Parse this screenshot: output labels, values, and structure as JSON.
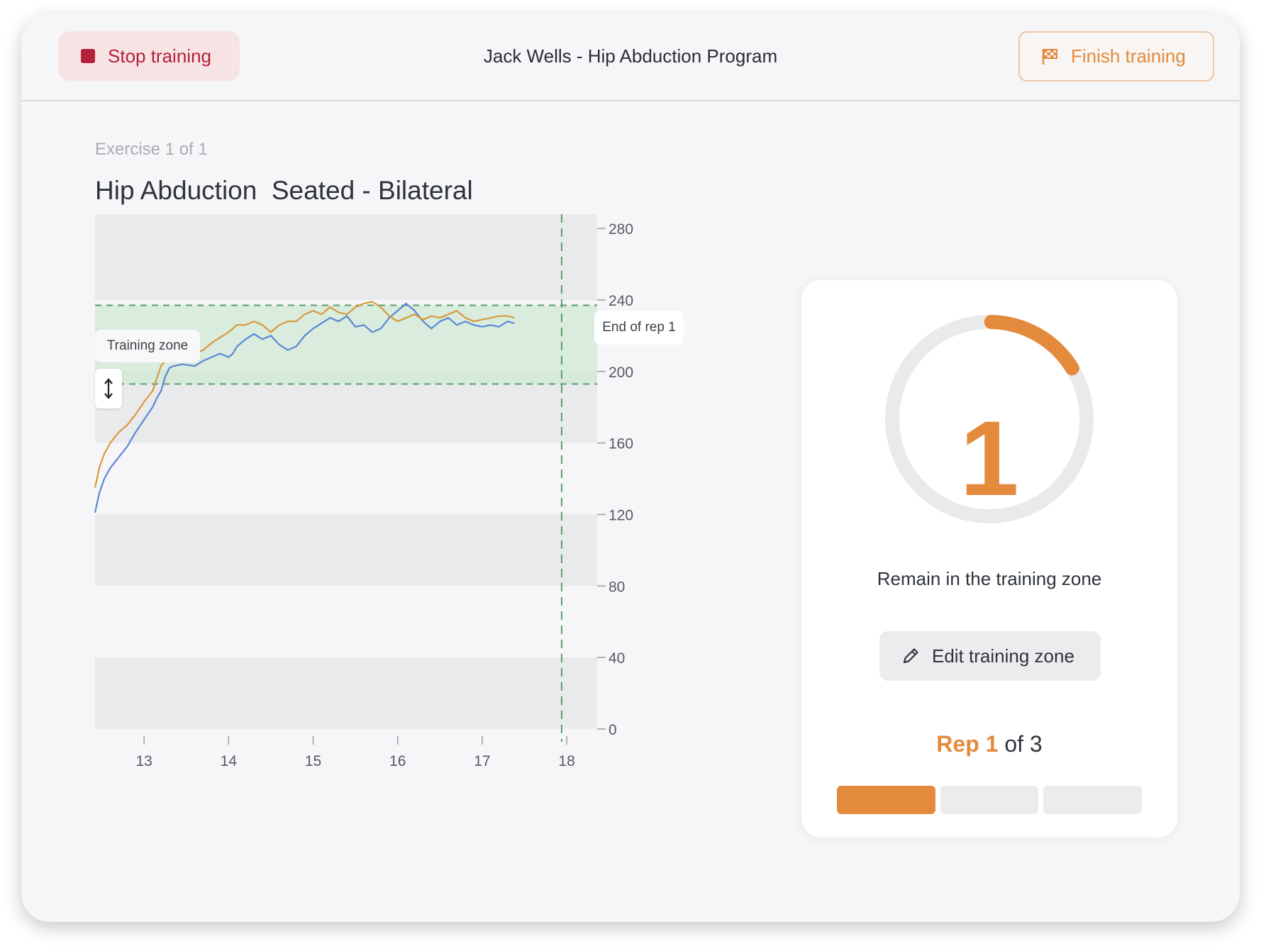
{
  "header": {
    "stop_label": "Stop training",
    "title": "Jack Wells - Hip Abduction Program",
    "finish_label": "Finish training"
  },
  "exercise": {
    "count_label": "Exercise 1 of 1",
    "name": "Hip Abduction  Seated - Bilateral"
  },
  "chart_labels": {
    "training_zone": "Training zone",
    "end_of_rep": "End of rep 1"
  },
  "side": {
    "rep_number": "1",
    "instruction": "Remain in the training zone",
    "edit_label": "Edit training zone",
    "rep_word": "Rep",
    "rep_current": "1",
    "rep_of": "of",
    "rep_total": "3"
  },
  "colors": {
    "accent": "#e38a3d",
    "stop": "#b3213a",
    "zone_fill": "#cfe8d4",
    "zone_line": "#5a9f6a",
    "series_blue": "#5b86d6",
    "series_orange": "#d89a3c"
  },
  "chart_data": {
    "type": "line",
    "x_ticks": [
      13,
      14,
      15,
      16,
      17,
      18
    ],
    "y_ticks": [
      0,
      40,
      80,
      120,
      160,
      200,
      240,
      280
    ],
    "xlim": [
      12.42,
      18.36
    ],
    "ylim": [
      -4,
      288
    ],
    "training_zone": [
      193,
      237
    ],
    "rep_end_x": 17.94,
    "series": [
      {
        "color": "blue",
        "x": [
          12.42,
          12.47,
          12.53,
          12.6,
          12.7,
          12.8,
          12.9,
          13.0,
          13.1,
          13.15,
          13.2,
          13.25,
          13.3,
          13.35,
          13.45,
          13.6,
          13.7,
          13.8,
          13.9,
          14.0,
          14.05,
          14.1,
          14.2,
          14.3,
          14.4,
          14.5,
          14.6,
          14.7,
          14.8,
          14.9,
          15.0,
          15.1,
          15.2,
          15.3,
          15.4,
          15.5,
          15.6,
          15.7,
          15.8,
          15.9,
          16.0,
          16.1,
          16.2,
          16.3,
          16.4,
          16.5,
          16.6,
          16.7,
          16.8,
          16.9,
          17.0,
          17.1,
          17.2,
          17.3,
          17.38
        ],
        "y": [
          121,
          132,
          140,
          146,
          152,
          158,
          166,
          173,
          180,
          185,
          189,
          197,
          202,
          203,
          204,
          203,
          206,
          208,
          210,
          208,
          210,
          214,
          218,
          221,
          218,
          220,
          215,
          212,
          214,
          220,
          224,
          227,
          230,
          228,
          231,
          225,
          226,
          222,
          224,
          230,
          234,
          238,
          234,
          228,
          224,
          228,
          230,
          226,
          228,
          226,
          225,
          226,
          225,
          228,
          227
        ]
      },
      {
        "color": "orange",
        "x": [
          12.42,
          12.47,
          12.53,
          12.6,
          12.7,
          12.8,
          12.9,
          13.0,
          13.1,
          13.15,
          13.2,
          13.25,
          13.3,
          13.4,
          13.5,
          13.6,
          13.7,
          13.8,
          13.9,
          14.0,
          14.1,
          14.2,
          14.3,
          14.4,
          14.5,
          14.6,
          14.7,
          14.8,
          14.9,
          15.0,
          15.1,
          15.2,
          15.3,
          15.4,
          15.5,
          15.6,
          15.7,
          15.8,
          15.9,
          16.0,
          16.1,
          16.2,
          16.3,
          16.4,
          16.5,
          16.6,
          16.7,
          16.8,
          16.9,
          17.0,
          17.1,
          17.2,
          17.3,
          17.38
        ],
        "y": [
          135,
          146,
          154,
          160,
          166,
          170,
          176,
          183,
          189,
          196,
          203,
          206,
          207,
          208,
          207,
          210,
          212,
          216,
          219,
          222,
          226,
          226,
          228,
          226,
          222,
          226,
          228,
          228,
          232,
          234,
          232,
          236,
          233,
          232,
          236,
          238,
          239,
          236,
          231,
          228,
          230,
          232,
          229,
          231,
          230,
          232,
          234,
          230,
          228,
          229,
          230,
          231,
          231,
          230
        ]
      }
    ]
  }
}
